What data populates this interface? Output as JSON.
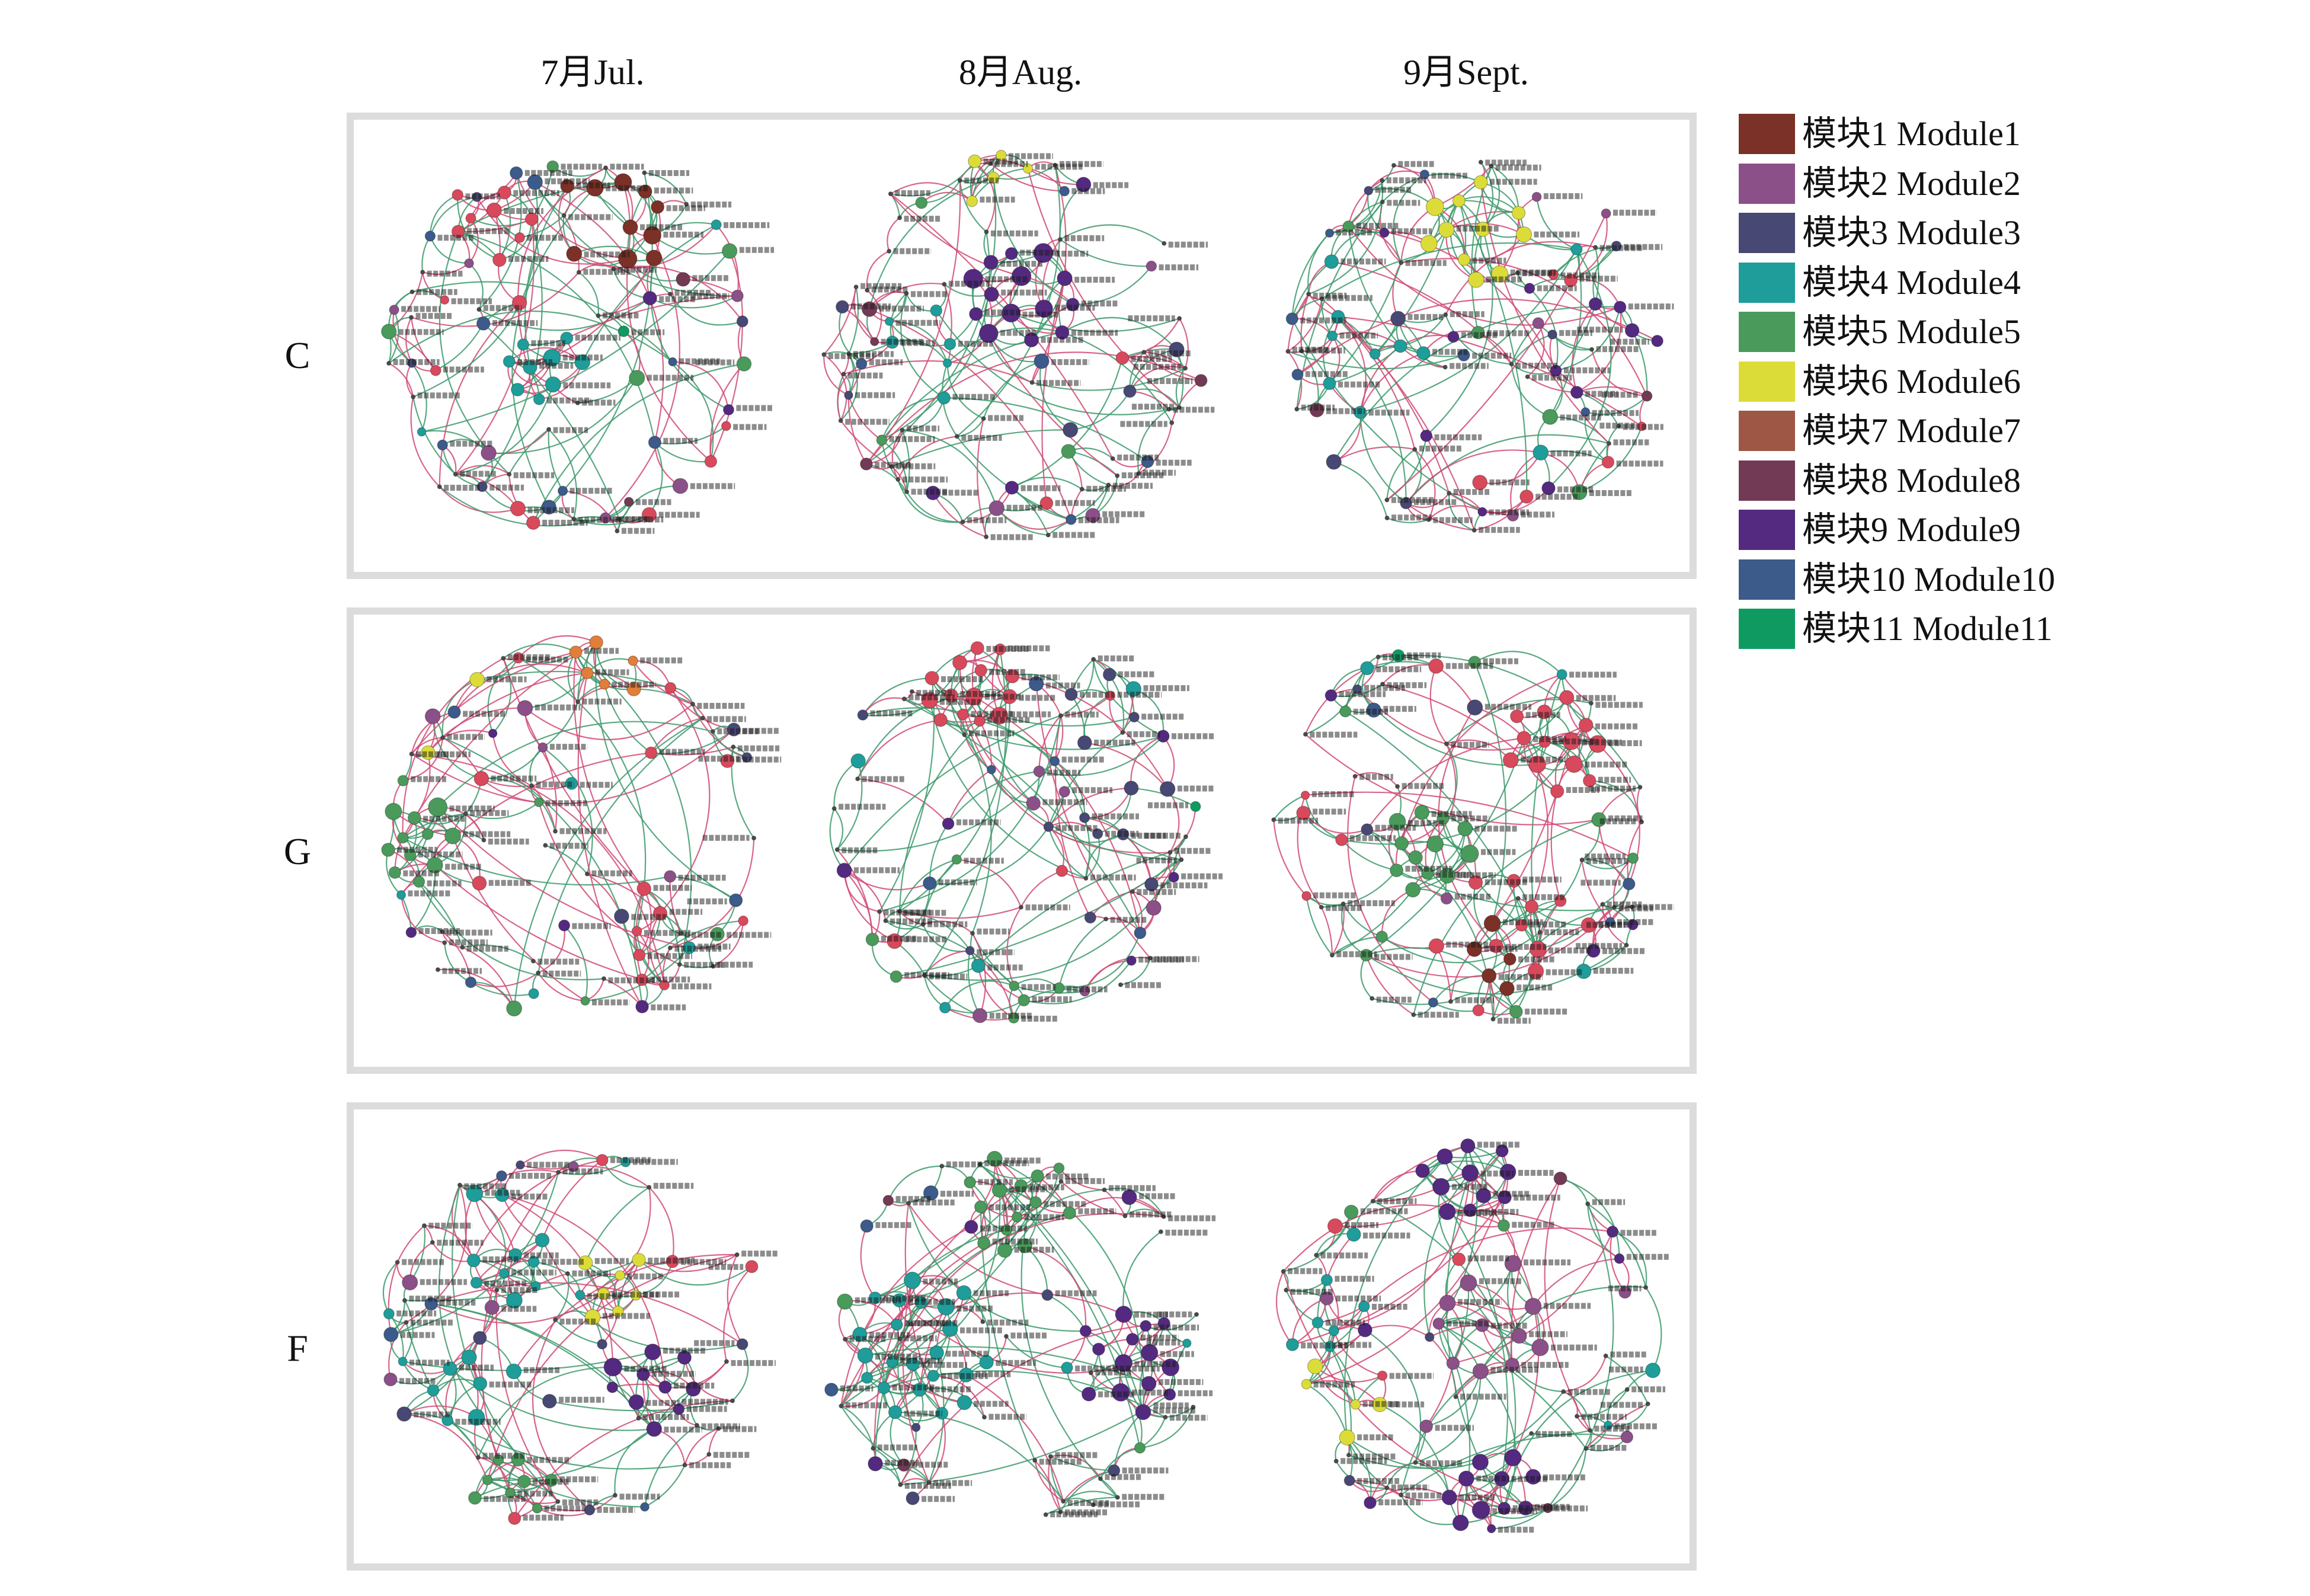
{
  "figure": {
    "column_headers": [
      "7月Jul.",
      "8月Aug.",
      "9月Sept."
    ],
    "row_labels": [
      "C",
      "G",
      "F"
    ]
  },
  "legend": {
    "items": [
      {
        "label": "模块1 Module1",
        "color": "#7b3127"
      },
      {
        "label": "模块2 Module2",
        "color": "#8b5088"
      },
      {
        "label": "模块3 Module3",
        "color": "#484874"
      },
      {
        "label": "模块4 Module4",
        "color": "#1e9d9a"
      },
      {
        "label": "模块5 Module5",
        "color": "#4a9a5b"
      },
      {
        "label": "模块6 Module6",
        "color": "#dcdc38"
      },
      {
        "label": "模块7 Module7",
        "color": "#9e5744"
      },
      {
        "label": "模块8 Module8",
        "color": "#733a55"
      },
      {
        "label": "模块9 Module9",
        "color": "#532a80"
      },
      {
        "label": "模块10 Module10",
        "color": "#3c5a8a"
      },
      {
        "label": "模块11 Module11",
        "color": "#0f9a62"
      }
    ]
  },
  "network_style": {
    "edge_colors": [
      "#3d9a6c",
      "#d04b76"
    ]
  }
}
